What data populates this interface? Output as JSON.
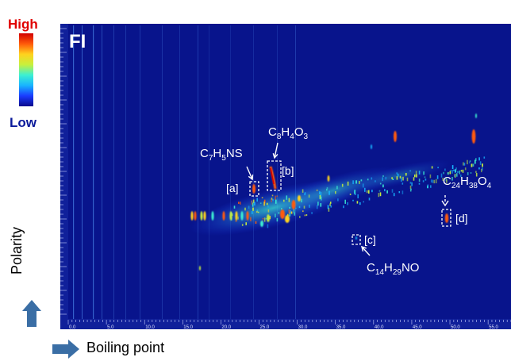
{
  "colorbar": {
    "high_label": "High",
    "low_label": "Low",
    "stops": [
      "#0a0a8c",
      "#1a3cff",
      "#18b4ff",
      "#3cf0d2",
      "#c8f03c",
      "#ffd21e",
      "#ff5a0a",
      "#d20000"
    ]
  },
  "panel_label": "FI",
  "axes": {
    "y_label": "Polarity",
    "x_label": "Boiling point",
    "arrow_color": "#3a6ea5"
  },
  "chart_data": {
    "type": "heatmap",
    "title": "",
    "xlabel": "Boiling point",
    "ylabel": "Polarity",
    "xlim": [
      0,
      58
    ],
    "x_ticks": [
      "0.0",
      "5.0",
      "10.0",
      "15.0",
      "20.0",
      "25.0",
      "30.0",
      "35.0",
      "40.0",
      "45.0",
      "50.0",
      "55.0"
    ],
    "background_color": "#08148c",
    "annotations": [
      {
        "id": "a",
        "label": "[a]",
        "formula": {
          "base": "C",
          "parts": [
            [
              "7",
              "H"
            ],
            [
              "5",
              "NS"
            ]
          ]
        }
      },
      {
        "id": "b",
        "label": "[b]",
        "formula": {
          "base": "C",
          "parts": [
            [
              "8",
              "H"
            ],
            [
              "4",
              "O"
            ],
            [
              "3",
              ""
            ]
          ]
        }
      },
      {
        "id": "c",
        "label": "[c]",
        "formula": {
          "base": "C",
          "parts": [
            [
              "14",
              "H"
            ],
            [
              "29",
              "NO"
            ]
          ]
        }
      },
      {
        "id": "d",
        "label": "[d]",
        "formula": {
          "base": "C",
          "parts": [
            [
              "24",
              "H"
            ],
            [
              "38",
              "O"
            ],
            [
              "4",
              ""
            ]
          ]
        }
      }
    ]
  }
}
